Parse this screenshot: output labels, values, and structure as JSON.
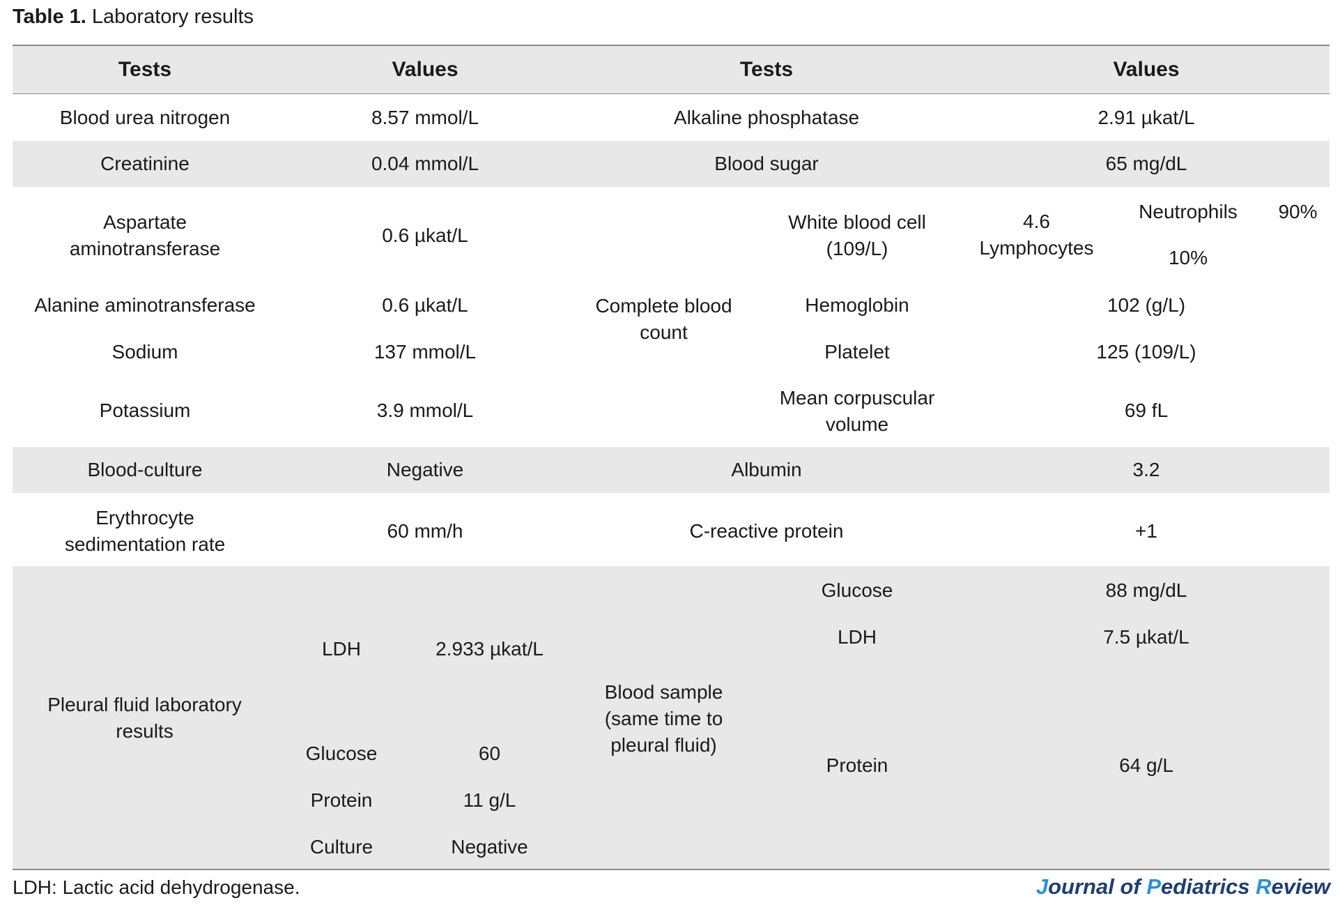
{
  "caption": {
    "label": "Table 1.",
    "title": "Laboratory results"
  },
  "headers": {
    "tests_left": "Tests",
    "values_left": "Values",
    "tests_right": "Tests",
    "values_right": "Values"
  },
  "rows": {
    "bun": {
      "test": "Blood urea nitrogen",
      "value": "8.57 mmol/L"
    },
    "alp": {
      "test": "Alkaline phosphatase",
      "value": "2.91 µkat/L"
    },
    "creatinine": {
      "test": "Creatinine",
      "value": "0.04 mmol/L"
    },
    "blood_sugar": {
      "test": "Blood sugar",
      "value": "65 mg/dL"
    },
    "ast": {
      "test": "Aspartate aminotransferase",
      "value": "0.6 µkat/L"
    },
    "alt": {
      "test": "Alanine aminotransferase",
      "value": "0.6 µkat/L"
    },
    "sodium": {
      "test": "Sodium",
      "value": "137 mmol/L"
    },
    "potassium": {
      "test": "Potassium",
      "value": "3.9 mmol/L"
    },
    "culture": {
      "test": "Blood-culture",
      "value": "Negative"
    },
    "albumin": {
      "test": "Albumin",
      "value": "3.2"
    },
    "esr": {
      "test": "Erythrocyte sedimentation rate",
      "value": "60 mm/h"
    },
    "crp": {
      "test": "C-reactive protein",
      "value": "+1"
    }
  },
  "cbc": {
    "group": "Complete blood count",
    "wbc_label": "White blood cell (109/L)",
    "wbc_value": "4.6",
    "lymphocytes_label": "Lymphocytes",
    "neutrophils_label": "Neutrophils",
    "neutrophils_value": "90%",
    "lymphocytes_value": "10%",
    "hemoglobin_label": "Hemoglobin",
    "hemoglobin_value": "102 (g/L)",
    "platelet_label": "Platelet",
    "platelet_value": "125 (109/L)",
    "mcv_label": "Mean corpuscular volume",
    "mcv_value": "69 fL"
  },
  "pleural": {
    "group": "Pleural fluid laboratory results",
    "ldh_label": "LDH",
    "ldh_value": "2.933 µkat/L",
    "glucose_label": "Glucose",
    "glucose_value": "60",
    "protein_label": "Protein",
    "protein_value": "11 g/L",
    "culture_label": "Culture",
    "culture_value": "Negative"
  },
  "blood_sample": {
    "group": "Blood sample (same time to pleural fluid)",
    "glucose_label": "Glucose",
    "glucose_value": "88 mg/dL",
    "ldh_label": "LDH",
    "ldh_value": "7.5 µkat/L",
    "protein_label": "Protein",
    "protein_value": "64 g/L"
  },
  "footnote": "LDH: Lactic acid dehydrogenase.",
  "journal": {
    "j": "J",
    "ournal": "ournal of ",
    "p": "P",
    "ediatrics": "ediatrics ",
    "r": "R",
    "eview": "eview"
  }
}
